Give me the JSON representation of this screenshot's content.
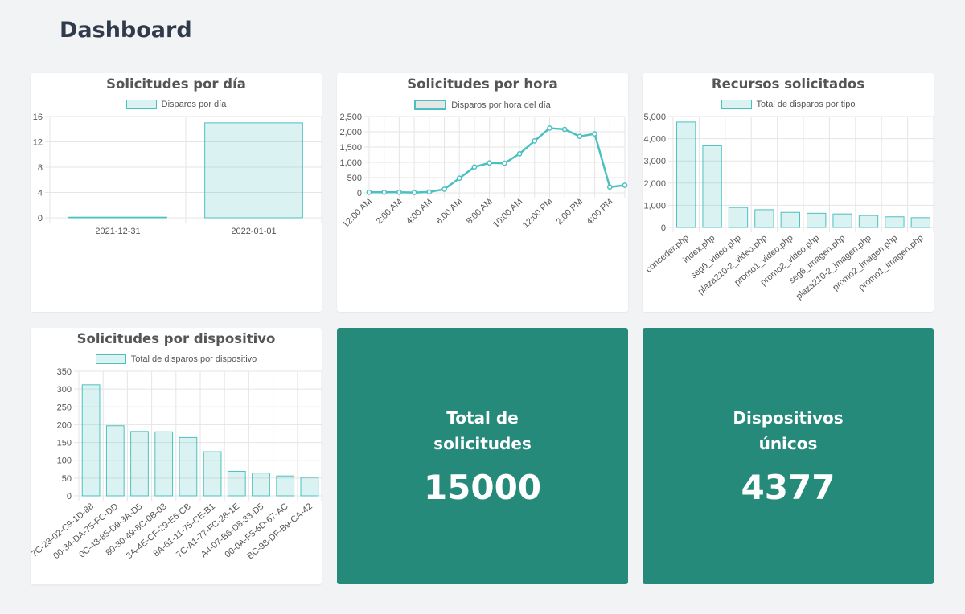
{
  "page": {
    "title": "Dashboard"
  },
  "colors": {
    "accent": "#4bc0c0",
    "stat_bg": "#268a7a",
    "bar_fill": "rgba(75,192,192,0.2)"
  },
  "charts": {
    "daily": {
      "title": "Solicitudes por día",
      "legend": "Disparos por día",
      "chart_data": {
        "type": "bar",
        "categories": [
          "2021-12-31",
          "2022-01-01"
        ],
        "series": [
          {
            "name": "Disparos por día",
            "values": [
              0.1,
              15
            ]
          }
        ],
        "y_ticks": [
          "0",
          "4",
          "8",
          "12",
          "16"
        ],
        "ylim": [
          0,
          16
        ]
      }
    },
    "hourly": {
      "title": "Solicitudes por hora",
      "legend": "Disparos por hora del día",
      "chart_data": {
        "type": "line",
        "x": [
          0,
          1,
          2,
          3,
          4,
          5,
          6,
          7,
          8,
          9,
          10,
          11,
          12,
          13,
          14,
          15,
          16,
          17
        ],
        "x_tick_labels": [
          "12:00 AM",
          "2:00 AM",
          "4:00 AM",
          "6:00 AM",
          "8:00 AM",
          "10:00 AM",
          "12:00 PM",
          "2:00 PM",
          "4:00 PM"
        ],
        "series": [
          {
            "name": "Disparos por hora del día",
            "values": [
              20,
              20,
              20,
              10,
              30,
              120,
              480,
              850,
              980,
              970,
              1280,
              1700,
              2120,
              2080,
              1850,
              1930,
              190,
              250
            ]
          }
        ],
        "y_ticks": [
          "0",
          "500",
          "1,000",
          "1,500",
          "2,000",
          "2,500"
        ],
        "ylim": [
          0,
          2500
        ]
      }
    },
    "resources": {
      "title": "Recursos solicitados",
      "legend": "Total de disparos por tipo",
      "chart_data": {
        "type": "bar",
        "categories": [
          "conceder.php",
          "index.php",
          "seg6_video.php",
          "plaza210-2_video.php",
          "promo1_video.php",
          "promo2_video.php",
          "seg6_imagen.php",
          "plaza210-2_imagen.php",
          "promo2_imagen.php",
          "promo1_imagen.php"
        ],
        "series": [
          {
            "name": "Total de disparos por tipo",
            "values": [
              4750,
              3680,
              900,
              800,
              680,
              640,
              610,
              540,
              480,
              440
            ]
          }
        ],
        "y_ticks": [
          "0",
          "1,000",
          "2,000",
          "3,000",
          "4,000",
          "5,000"
        ],
        "ylim": [
          0,
          5000
        ]
      }
    },
    "devices": {
      "title": "Solicitudes por dispositivo",
      "legend": "Total de disparos por dispositivo",
      "chart_data": {
        "type": "bar",
        "categories": [
          "7C-23-02-C9-1D-88",
          "00-34-DA-75-FC-DD",
          "0C-48-85-D9-3A-D5",
          "80-30-49-8C-0B-03",
          "3A-4E-CF-29-E6-CB",
          "8A-61-11-75-CE-B1",
          "7C-A1-77-FC-28-1E",
          "A4-07-B6-D8-33-D5",
          "00-0A-F5-6D-67-AC",
          "BC-98-DF-B9-CA-42"
        ],
        "series": [
          {
            "name": "Total de disparos por dispositivo",
            "values": [
              312,
              197,
              181,
              180,
              164,
              124,
              69,
              64,
              56,
              52
            ]
          }
        ],
        "y_ticks": [
          "0",
          "50",
          "100",
          "150",
          "200",
          "250",
          "300",
          "350"
        ],
        "ylim": [
          0,
          350
        ]
      }
    }
  },
  "stats": {
    "total": {
      "label": "Total de solicitudes",
      "value": "15000"
    },
    "unique": {
      "label": "Dispositivos únicos",
      "value": "4377"
    }
  }
}
